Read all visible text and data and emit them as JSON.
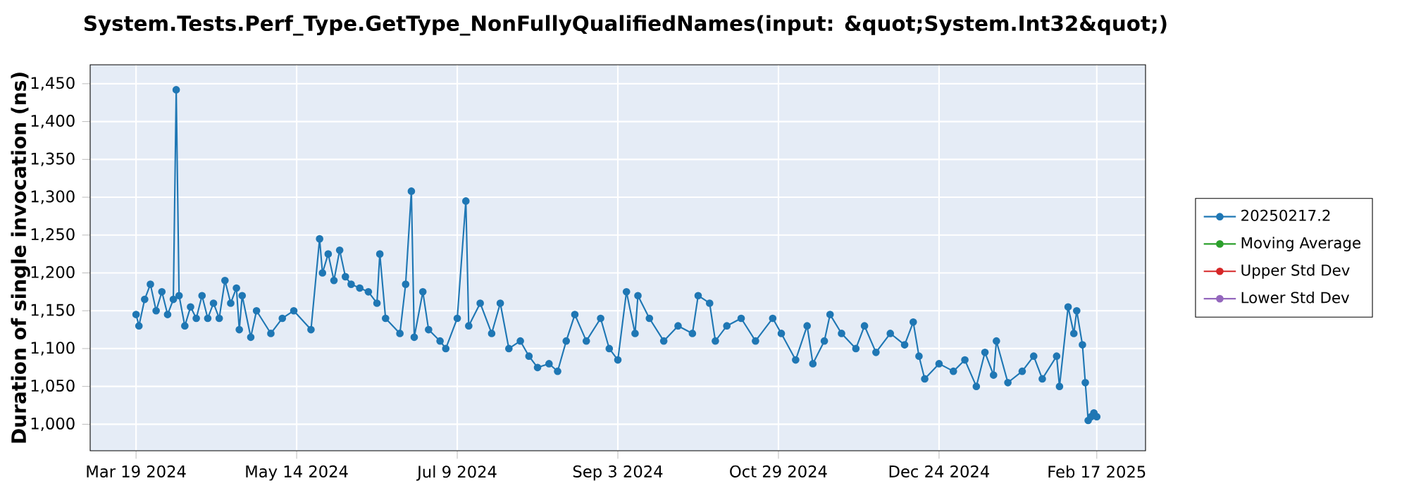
{
  "chart_data": {
    "type": "line",
    "title": "System.Tests.Perf_Type.GetType_NonFullyQualifiedNames(input: &quot;System.Int32&quot;)",
    "ylabel": "Duration of single invocation (ns)",
    "x": [
      "2024-03-19",
      "2024-03-20",
      "2024-03-22",
      "2024-03-24",
      "2024-03-26",
      "2024-03-28",
      "2024-03-30",
      "2024-04-01",
      "2024-04-02",
      "2024-04-03",
      "2024-04-05",
      "2024-04-07",
      "2024-04-09",
      "2024-04-11",
      "2024-04-13",
      "2024-04-15",
      "2024-04-17",
      "2024-04-19",
      "2024-04-21",
      "2024-04-23",
      "2024-04-24",
      "2024-04-25",
      "2024-04-28",
      "2024-04-30",
      "2024-05-05",
      "2024-05-09",
      "2024-05-13",
      "2024-05-19",
      "2024-05-22",
      "2024-05-23",
      "2024-05-25",
      "2024-05-27",
      "2024-05-29",
      "2024-05-31",
      "2024-06-02",
      "2024-06-05",
      "2024-06-08",
      "2024-06-11",
      "2024-06-12",
      "2024-06-14",
      "2024-06-19",
      "2024-06-21",
      "2024-06-23",
      "2024-06-24",
      "2024-06-27",
      "2024-06-29",
      "2024-07-03",
      "2024-07-05",
      "2024-07-09",
      "2024-07-12",
      "2024-07-13",
      "2024-07-17",
      "2024-07-21",
      "2024-07-24",
      "2024-07-27",
      "2024-07-31",
      "2024-08-03",
      "2024-08-06",
      "2024-08-10",
      "2024-08-13",
      "2024-08-16",
      "2024-08-19",
      "2024-08-23",
      "2024-08-28",
      "2024-08-31",
      "2024-09-03",
      "2024-09-06",
      "2024-09-09",
      "2024-09-10",
      "2024-09-14",
      "2024-09-19",
      "2024-09-24",
      "2024-09-29",
      "2024-10-01",
      "2024-10-05",
      "2024-10-07",
      "2024-10-11",
      "2024-10-16",
      "2024-10-21",
      "2024-10-27",
      "2024-10-30",
      "2024-11-04",
      "2024-11-08",
      "2024-11-10",
      "2024-11-14",
      "2024-11-16",
      "2024-11-20",
      "2024-11-25",
      "2024-11-28",
      "2024-12-02",
      "2024-12-07",
      "2024-12-12",
      "2024-12-15",
      "2024-12-17",
      "2024-12-19",
      "2024-12-24",
      "2024-12-29",
      "2025-01-02",
      "2025-01-06",
      "2025-01-09",
      "2025-01-12",
      "2025-01-13",
      "2025-01-17",
      "2025-01-22",
      "2025-01-26",
      "2025-01-29",
      "2025-02-03",
      "2025-02-04",
      "2025-02-07",
      "2025-02-09",
      "2025-02-10",
      "2025-02-12",
      "2025-02-13",
      "2025-02-14",
      "2025-02-15",
      "2025-02-16",
      "2025-02-17"
    ],
    "series": [
      {
        "name": "20250217.2",
        "color": "#1f77b4",
        "values": [
          1145,
          1130,
          1165,
          1185,
          1150,
          1175,
          1145,
          1165,
          1442,
          1170,
          1130,
          1155,
          1140,
          1170,
          1140,
          1160,
          1140,
          1190,
          1160,
          1180,
          1125,
          1170,
          1115,
          1150,
          1120,
          1140,
          1150,
          1125,
          1245,
          1200,
          1225,
          1190,
          1230,
          1195,
          1185,
          1180,
          1175,
          1160,
          1225,
          1140,
          1120,
          1185,
          1308,
          1115,
          1175,
          1125,
          1110,
          1100,
          1140,
          1295,
          1130,
          1160,
          1120,
          1160,
          1100,
          1110,
          1090,
          1075,
          1080,
          1070,
          1110,
          1145,
          1110,
          1140,
          1100,
          1085,
          1175,
          1120,
          1170,
          1140,
          1110,
          1130,
          1120,
          1170,
          1160,
          1110,
          1130,
          1140,
          1110,
          1140,
          1120,
          1085,
          1130,
          1080,
          1110,
          1145,
          1120,
          1100,
          1130,
          1095,
          1120,
          1105,
          1135,
          1090,
          1060,
          1080,
          1070,
          1085,
          1050,
          1095,
          1065,
          1110,
          1055,
          1070,
          1090,
          1060,
          1090,
          1050,
          1155,
          1120,
          1150,
          1105,
          1055,
          1005,
          1010,
          1015,
          1010
        ]
      },
      {
        "name": "Moving Average",
        "color": "#2ca02c",
        "values": [
          null,
          null,
          null,
          null,
          null,
          null,
          null,
          null,
          null,
          null,
          null,
          null,
          null,
          null,
          null,
          null,
          null,
          null,
          null,
          null,
          null,
          null,
          null,
          null,
          null,
          null,
          null,
          null,
          null,
          null,
          null,
          null,
          null,
          null,
          null,
          null,
          null,
          null,
          null,
          null,
          null,
          null,
          null,
          null,
          null,
          null,
          null,
          null,
          null,
          null,
          null,
          null,
          null,
          null,
          null,
          null,
          null,
          null,
          null,
          null,
          null,
          null,
          null,
          null,
          null,
          null,
          null,
          null,
          null,
          null,
          null,
          null,
          null,
          null,
          null,
          null,
          null,
          null,
          null,
          null,
          null,
          null,
          null,
          null,
          null,
          null,
          null,
          null,
          null,
          null,
          null,
          null,
          null,
          null,
          null,
          null,
          null,
          null,
          null,
          null,
          null,
          null,
          null,
          null,
          null,
          null,
          null,
          null,
          null,
          null,
          null,
          null,
          null,
          null,
          null,
          null,
          null
        ]
      },
      {
        "name": "Upper Std Dev",
        "color": "#d62728",
        "values": [
          null,
          null,
          null,
          null,
          null,
          null,
          null,
          null,
          null,
          null,
          null,
          null,
          null,
          null,
          null,
          null,
          null,
          null,
          null,
          null,
          null,
          null,
          null,
          null,
          null,
          null,
          null,
          null,
          null,
          null,
          null,
          null,
          null,
          null,
          null,
          null,
          null,
          null,
          null,
          null,
          null,
          null,
          null,
          null,
          null,
          null,
          null,
          null,
          null,
          null,
          null,
          null,
          null,
          null,
          null,
          null,
          null,
          null,
          null,
          null,
          null,
          null,
          null,
          null,
          null,
          null,
          null,
          null,
          null,
          null,
          null,
          null,
          null,
          null,
          null,
          null,
          null,
          null,
          null,
          null,
          null,
          null,
          null,
          null,
          null,
          null,
          null,
          null,
          null,
          null,
          null,
          null,
          null,
          null,
          null,
          null,
          null,
          null,
          null,
          null,
          null,
          null,
          null,
          null,
          null,
          null,
          null,
          null,
          null,
          null,
          null,
          null,
          null,
          null,
          null,
          null,
          null
        ]
      },
      {
        "name": "Lower Std Dev",
        "color": "#9467bd",
        "values": [
          null,
          null,
          null,
          null,
          null,
          null,
          null,
          null,
          null,
          null,
          null,
          null,
          null,
          null,
          null,
          null,
          null,
          null,
          null,
          null,
          null,
          null,
          null,
          null,
          null,
          null,
          null,
          null,
          null,
          null,
          null,
          null,
          null,
          null,
          null,
          null,
          null,
          null,
          null,
          null,
          null,
          null,
          null,
          null,
          null,
          null,
          null,
          null,
          null,
          null,
          null,
          null,
          null,
          null,
          null,
          null,
          null,
          null,
          null,
          null,
          null,
          null,
          null,
          null,
          null,
          null,
          null,
          null,
          null,
          null,
          null,
          null,
          null,
          null,
          null,
          null,
          null,
          null,
          null,
          null,
          null,
          null,
          null,
          null,
          null,
          null,
          null,
          null,
          null,
          null,
          null,
          null,
          null,
          null,
          null,
          null,
          null,
          null,
          null,
          null,
          null,
          null,
          null,
          null,
          null,
          null,
          null,
          null,
          null,
          null,
          null,
          null,
          null,
          null,
          null,
          null,
          null
        ]
      }
    ],
    "xlim": [
      "2024-03-03",
      "2025-03-06"
    ],
    "ylim": [
      965,
      1475
    ],
    "xticks": [
      {
        "value": "2024-03-19",
        "label": "Mar 19 2024"
      },
      {
        "value": "2024-05-14",
        "label": "May 14 2024"
      },
      {
        "value": "2024-07-09",
        "label": "Jul 9 2024"
      },
      {
        "value": "2024-09-03",
        "label": "Sep 3 2024"
      },
      {
        "value": "2024-10-29",
        "label": "Oct 29 2024"
      },
      {
        "value": "2024-12-24",
        "label": "Dec 24 2024"
      },
      {
        "value": "2025-02-17",
        "label": "Feb 17 2025"
      }
    ],
    "yticks": [
      {
        "value": 1000,
        "label": "1,000"
      },
      {
        "value": 1050,
        "label": "1,050"
      },
      {
        "value": 1100,
        "label": "1,100"
      },
      {
        "value": 1150,
        "label": "1,150"
      },
      {
        "value": 1200,
        "label": "1,200"
      },
      {
        "value": 1250,
        "label": "1,250"
      },
      {
        "value": 1300,
        "label": "1,300"
      },
      {
        "value": 1350,
        "label": "1,350"
      },
      {
        "value": 1400,
        "label": "1,400"
      },
      {
        "value": 1450,
        "label": "1,450"
      }
    ],
    "grid": true,
    "legend": "right",
    "marker": "circle",
    "line_style": "solid"
  }
}
